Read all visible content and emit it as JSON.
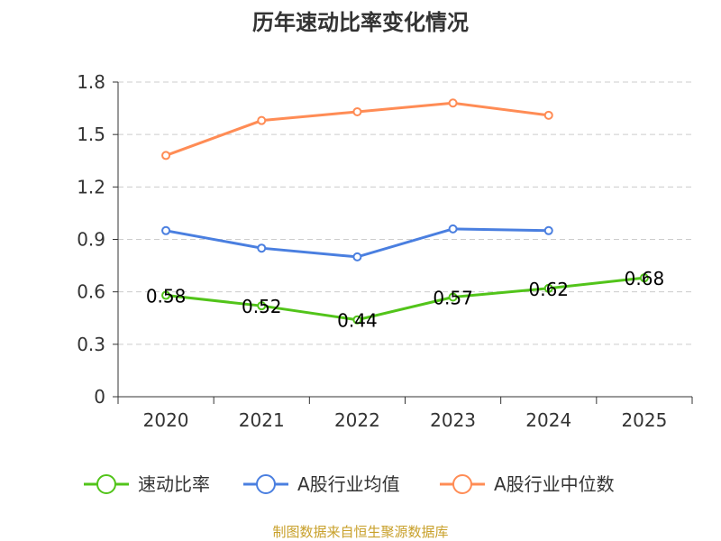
{
  "chart_data": {
    "type": "line",
    "title": "历年速动比率变化情况",
    "categories": [
      "2020",
      "2021",
      "2022",
      "2023",
      "2024",
      "2025"
    ],
    "ylim": [
      0,
      1.8
    ],
    "yticks": [
      0,
      0.3,
      0.6,
      0.9,
      1.2,
      1.5,
      1.8
    ],
    "ytick_labels": [
      "0",
      "0.3",
      "0.6",
      "0.9",
      "1.2",
      "1.5",
      "1.8"
    ],
    "grid": true,
    "legend_position": "bottom",
    "series": [
      {
        "name": "速动比率",
        "color": "#52c41a",
        "values": [
          0.58,
          0.52,
          0.44,
          0.57,
          0.62,
          0.68
        ],
        "labels": [
          "0.58",
          "0.52",
          "0.44",
          "0.57",
          "0.62",
          "0.68"
        ]
      },
      {
        "name": "A股行业均值",
        "color": "#4a7fe0",
        "values": [
          0.95,
          0.85,
          0.8,
          0.96,
          0.95,
          null
        ]
      },
      {
        "name": "A股行业中位数",
        "color": "#ff8c55",
        "values": [
          1.38,
          1.58,
          1.63,
          1.68,
          1.61,
          null
        ]
      }
    ],
    "source": "制图数据来自恒生聚源数据库"
  }
}
